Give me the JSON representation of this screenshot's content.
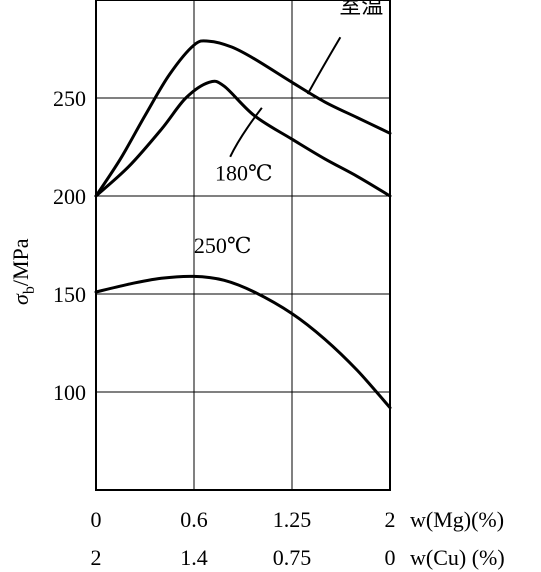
{
  "chart_data": {
    "type": "line",
    "ylabel": "σb/MPa",
    "ylim": [
      50,
      300
    ],
    "yticks": [
      100,
      150,
      200,
      250
    ],
    "xlim": [
      0,
      2
    ],
    "grid": true,
    "x_axes": [
      {
        "label": "w(Mg)(%)",
        "ticks": [
          0,
          0.6,
          1.25,
          2
        ],
        "tick_labels": [
          "0",
          "0.6",
          "1.25",
          "2"
        ]
      },
      {
        "label": "w(Cu) (%)",
        "ticks": [
          0,
          0.6,
          1.25,
          2
        ],
        "tick_labels": [
          "2",
          "1.4",
          "0.75",
          "0"
        ]
      }
    ],
    "series": [
      {
        "name": "室温",
        "x": [
          0,
          0.15,
          0.3,
          0.45,
          0.6,
          0.7,
          0.85,
          1.0,
          1.25,
          1.5,
          1.75,
          2.0
        ],
        "values": [
          200,
          219,
          241,
          262,
          277,
          279,
          276,
          270,
          258,
          248,
          240,
          232
        ]
      },
      {
        "name": "180℃",
        "x": [
          0,
          0.2,
          0.4,
          0.55,
          0.7,
          0.8,
          1.0,
          1.25,
          1.5,
          1.75,
          2.0
        ],
        "values": [
          200,
          215,
          234,
          250,
          258,
          256,
          241,
          229,
          219,
          210,
          200
        ]
      },
      {
        "name": "250℃",
        "x": [
          0,
          0.2,
          0.4,
          0.6,
          0.8,
          1.0,
          1.25,
          1.5,
          1.75,
          2.0
        ],
        "values": [
          151,
          155,
          158,
          159,
          157,
          151,
          140,
          127,
          111,
          92
        ]
      }
    ]
  }
}
